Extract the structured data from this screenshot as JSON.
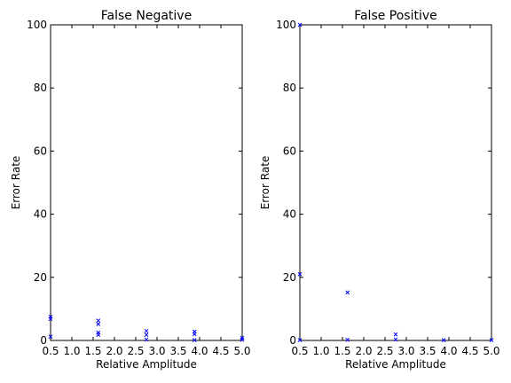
{
  "chart_data": [
    {
      "type": "scatter",
      "title": "False Negative",
      "xlabel": "Relative Amplitude",
      "ylabel": "Error Rate",
      "xlim": [
        0.5,
        5.0
      ],
      "ylim": [
        0,
        100
      ],
      "xticks": [
        "0.5",
        "1.0",
        "1.5",
        "2.0",
        "2.5",
        "3.0",
        "3.5",
        "4.0",
        "4.5",
        "5.0"
      ],
      "yticks": [
        "0",
        "20",
        "40",
        "60",
        "80",
        "100"
      ],
      "grid": false,
      "marker_color": "#0000ff",
      "points": [
        {
          "x": 0.5,
          "y": 7.5
        },
        {
          "x": 0.5,
          "y": 6.8
        },
        {
          "x": 0.5,
          "y": 1.2
        },
        {
          "x": 1.62,
          "y": 6.3
        },
        {
          "x": 1.62,
          "y": 5.2
        },
        {
          "x": 1.62,
          "y": 2.5
        },
        {
          "x": 1.62,
          "y": 1.8
        },
        {
          "x": 2.75,
          "y": 3.0
        },
        {
          "x": 2.75,
          "y": 1.8
        },
        {
          "x": 2.75,
          "y": 0.3
        },
        {
          "x": 3.88,
          "y": 2.8
        },
        {
          "x": 3.88,
          "y": 2.0
        },
        {
          "x": 3.88,
          "y": 0.1
        },
        {
          "x": 5.0,
          "y": 0.8
        },
        {
          "x": 5.0,
          "y": 0.2
        }
      ]
    },
    {
      "type": "scatter",
      "title": "False Positive",
      "xlabel": "Relative Amplitude",
      "ylabel": "Error Rate",
      "xlim": [
        0.5,
        5.0
      ],
      "ylim": [
        0,
        100
      ],
      "xticks": [
        "0.5",
        "1.0",
        "1.5",
        "2.0",
        "2.5",
        "3.0",
        "3.5",
        "4.0",
        "4.5",
        "5.0"
      ],
      "yticks": [
        "0",
        "20",
        "40",
        "60",
        "80",
        "100"
      ],
      "grid": false,
      "marker_color": "#0000ff",
      "points": [
        {
          "x": 0.5,
          "y": 100
        },
        {
          "x": 0.5,
          "y": 21.0
        },
        {
          "x": 0.5,
          "y": 0.1
        },
        {
          "x": 1.62,
          "y": 15.2
        },
        {
          "x": 1.62,
          "y": 0.2
        },
        {
          "x": 2.75,
          "y": 1.9
        },
        {
          "x": 2.75,
          "y": 0.3
        },
        {
          "x": 3.88,
          "y": 0.1
        },
        {
          "x": 5.0,
          "y": 0.1
        }
      ]
    }
  ]
}
